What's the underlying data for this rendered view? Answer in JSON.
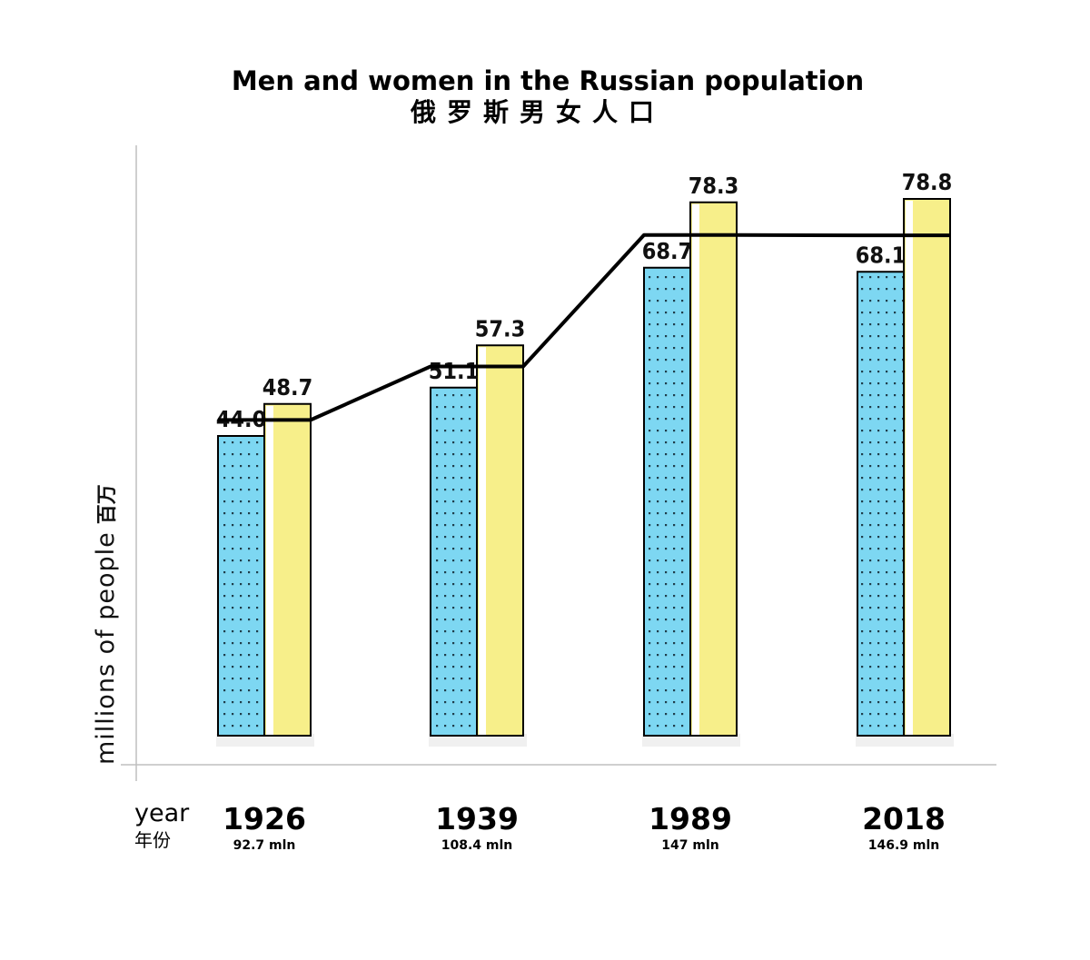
{
  "colors": {
    "men": "#7dd7f2",
    "women": "#f7ef8a",
    "line": "#000000",
    "axis": "#bfbfbf"
  },
  "chart_data": {
    "type": "bar",
    "title": "Men and women in the Russian population",
    "subtitle": "俄罗斯男女人口",
    "ylabel": "millions of people",
    "ylabel_cn": "百万",
    "xlabel": "year",
    "xlabel_cn": "年份",
    "categories": [
      "1926",
      "1939",
      "1989",
      "2018"
    ],
    "totals": [
      "92.7 mln",
      "108.4 mln",
      "147 mln",
      "146.9 mln"
    ],
    "series": [
      {
        "values": [
          44.0,
          51.1,
          68.7,
          68.1
        ],
        "labels": [
          "44.0",
          "51.1",
          "68.7",
          "68.1"
        ],
        "pattern": "dots"
      },
      {
        "values": [
          48.7,
          57.3,
          78.3,
          78.8
        ],
        "labels": [
          "48.7",
          "57.3",
          "78.3",
          "78.8"
        ]
      }
    ],
    "line_values": [
      46.35,
      54.2,
      73.5,
      73.45
    ],
    "ylim": [
      0,
      88
    ],
    "grid": false,
    "legend": "none"
  }
}
